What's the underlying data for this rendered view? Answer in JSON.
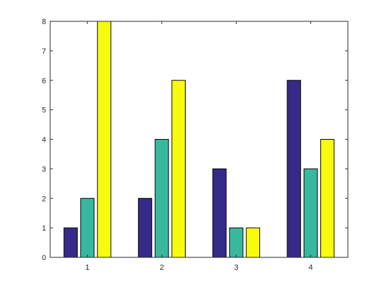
{
  "chart_data": {
    "type": "bar",
    "categories": [
      "1",
      "2",
      "3",
      "4"
    ],
    "series": [
      {
        "values": [
          1,
          2,
          3,
          6
        ],
        "color": "#352a87"
      },
      {
        "values": [
          2,
          4,
          1,
          3
        ],
        "color": "#38b99e"
      },
      {
        "values": [
          8,
          6,
          1,
          4
        ],
        "color": "#f9fb0e"
      }
    ],
    "xlabel": "",
    "ylabel": "",
    "ylim": [
      0,
      8
    ],
    "yticks": [
      "0",
      "1",
      "2",
      "3",
      "4",
      "5",
      "6",
      "7",
      "8"
    ],
    "grid": false,
    "legend": "none",
    "frame": "box",
    "bar_edge_color": "#000000",
    "axis_color": "#262626",
    "background": "#ffffff"
  }
}
